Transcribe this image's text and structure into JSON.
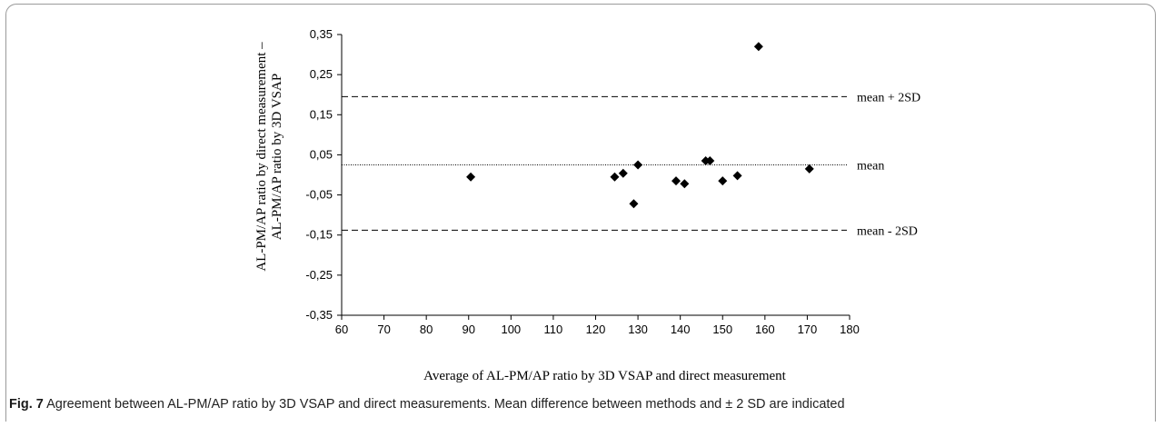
{
  "caption": {
    "label": "Fig. 7",
    "text": " Agreement between AL-PM/AP ratio by 3D VSAP and direct measurements. Mean difference between methods and ± 2 SD are indicated"
  },
  "chart_data": {
    "type": "scatter",
    "xlabel": "Average of AL-PM/AP ratio by 3D VSAP and direct measurement",
    "ylabel_lines": [
      "AL-PM/AP ratio by direct measurement –",
      "AL-PM/AP ratio by 3D VSAP"
    ],
    "xlim": [
      60,
      180
    ],
    "ylim": [
      -0.35,
      0.35
    ],
    "x_ticks": [
      "60",
      "70",
      "80",
      "90",
      "100",
      "110",
      "120",
      "130",
      "140",
      "150",
      "160",
      "170",
      "180"
    ],
    "y_ticks": [
      "0,35",
      "0,25",
      "0,15",
      "0,05",
      "-0,05",
      "-0,15",
      "-0,25",
      "-0,35"
    ],
    "grid": false,
    "marker": "diamond",
    "points": [
      {
        "x": 90.5,
        "y": -0.005
      },
      {
        "x": 124.5,
        "y": -0.005
      },
      {
        "x": 126.5,
        "y": 0.004
      },
      {
        "x": 129,
        "y": -0.072
      },
      {
        "x": 130,
        "y": 0.025
      },
      {
        "x": 139,
        "y": -0.015
      },
      {
        "x": 141,
        "y": -0.022
      },
      {
        "x": 146,
        "y": 0.035
      },
      {
        "x": 147,
        "y": 0.035
      },
      {
        "x": 150,
        "y": -0.015
      },
      {
        "x": 153.5,
        "y": -0.002
      },
      {
        "x": 158.5,
        "y": 0.32
      },
      {
        "x": 170.5,
        "y": 0.015
      }
    ],
    "reference_lines": [
      {
        "label": "mean + 2SD",
        "y": 0.195,
        "style": "dashed"
      },
      {
        "label": "mean",
        "y": 0.025,
        "style": "dotted"
      },
      {
        "label": "mean - 2SD",
        "y": -0.138,
        "style": "dashed"
      }
    ]
  }
}
